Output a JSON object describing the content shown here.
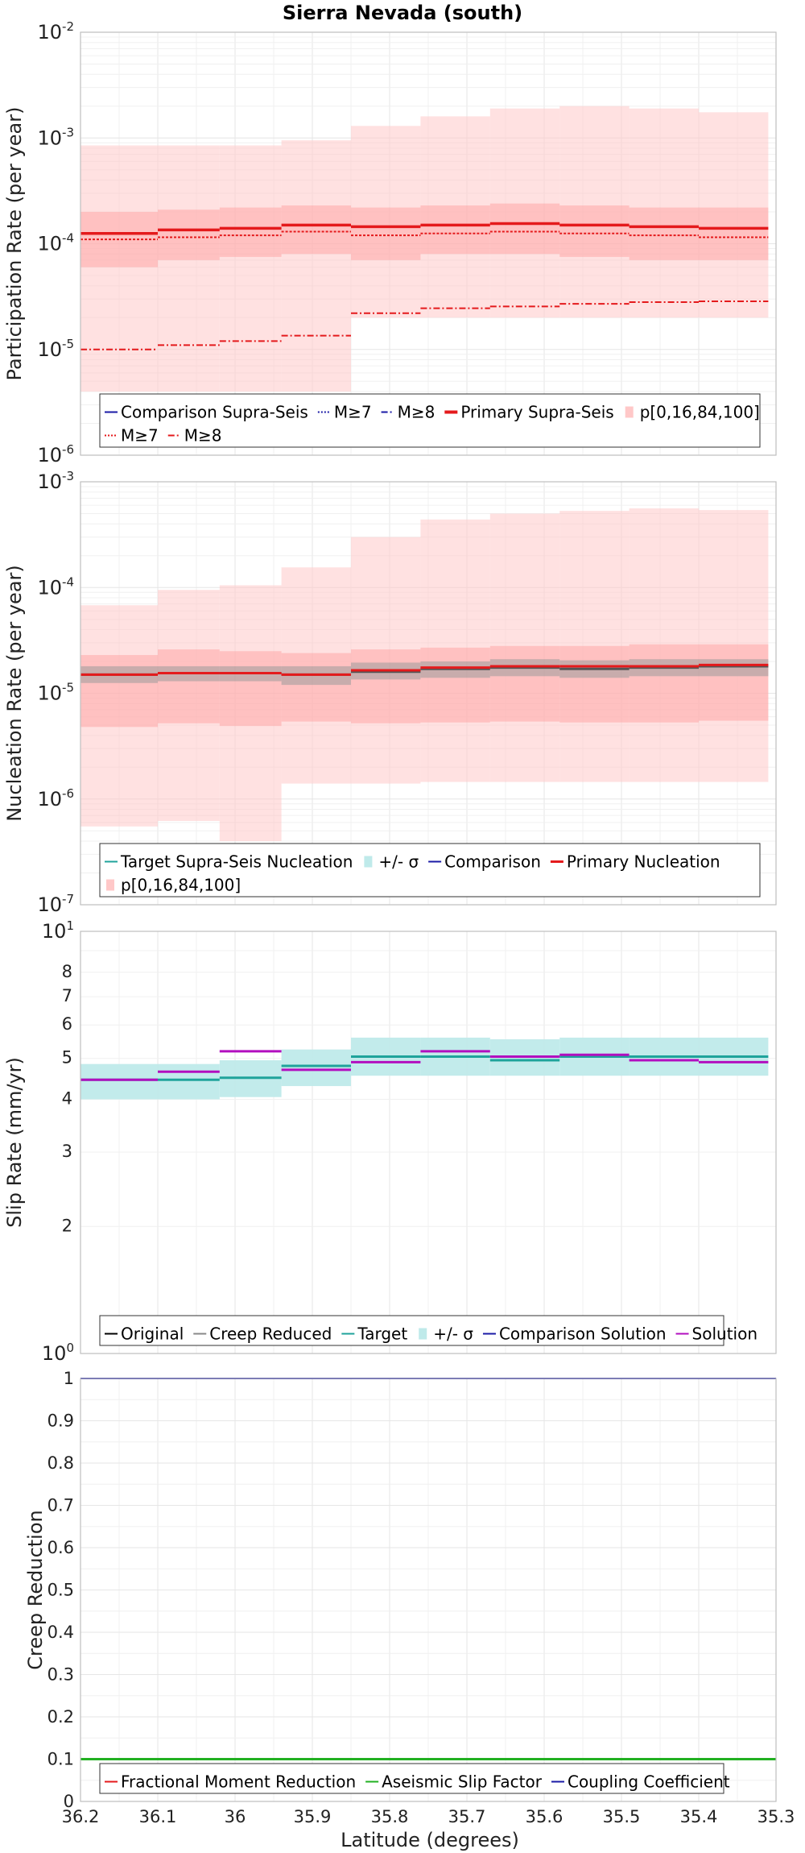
{
  "title": "Sierra Nevada (south)",
  "xlabel": "Latitude (degrees)",
  "x_ticks": [
    "36.2",
    "36.1",
    "36",
    "35.9",
    "35.8",
    "35.7",
    "35.6",
    "35.5",
    "35.4",
    "35.3"
  ],
  "colors": {
    "red": "#e41a1c",
    "pink": "#ffc8c8",
    "teal": "#1fa39b",
    "teal_band": "#bfeaea",
    "magenta": "#b20fbf",
    "blue": "#1a1aa6",
    "green": "#22b022",
    "gray": "#888888"
  },
  "chart_data": [
    {
      "type": "line",
      "id": "participation",
      "ylabel": "Participation Rate (per year)",
      "yscale": "log",
      "ylim": [
        1e-06,
        0.01
      ],
      "y_ticks": [
        {
          "base": "10",
          "exp": "-6"
        },
        {
          "base": "10",
          "exp": "-5"
        },
        {
          "base": "10",
          "exp": "-4"
        },
        {
          "base": "10",
          "exp": "-3"
        },
        {
          "base": "10",
          "exp": "-2"
        }
      ],
      "xlim": [
        36.2,
        35.3
      ],
      "bin_edges": [
        36.2,
        36.1,
        36.02,
        35.94,
        35.85,
        35.76,
        35.67,
        35.58,
        35.49,
        35.4,
        35.31
      ],
      "bands": [
        {
          "kind": "outer",
          "lo": [
            4e-06,
            4e-06,
            4e-06,
            4e-06,
            2e-05,
            2e-05,
            2e-05,
            2e-05,
            2e-05,
            2e-05
          ],
          "hi": [
            0.00085,
            0.00085,
            0.00085,
            0.00095,
            0.0013,
            0.0016,
            0.0019,
            0.002,
            0.0019,
            0.00175
          ]
        },
        {
          "kind": "inner",
          "lo": [
            6e-05,
            7e-05,
            7.5e-05,
            8e-05,
            7e-05,
            8e-05,
            8e-05,
            7.5e-05,
            7e-05,
            7e-05
          ],
          "hi": [
            0.0002,
            0.00021,
            0.00022,
            0.00023,
            0.00022,
            0.00023,
            0.00024,
            0.00023,
            0.00022,
            0.00022
          ]
        }
      ],
      "series": [
        {
          "name": "Primary Supra-Seis",
          "style": "solid",
          "values": [
            0.000125,
            0.000135,
            0.00014,
            0.00015,
            0.000145,
            0.00015,
            0.000155,
            0.00015,
            0.000145,
            0.00014
          ]
        },
        {
          "name": "M≥7",
          "style": "dotted",
          "values": [
            0.00011,
            0.000115,
            0.00012,
            0.00013,
            0.00012,
            0.000125,
            0.00013,
            0.000125,
            0.00012,
            0.000115
          ]
        },
        {
          "name": "M≥8",
          "style": "dashdot",
          "values": [
            1e-05,
            1.1e-05,
            1.2e-05,
            1.35e-05,
            2.2e-05,
            2.45e-05,
            2.55e-05,
            2.7e-05,
            2.8e-05,
            2.85e-05
          ]
        }
      ],
      "legend": [
        {
          "label": "Comparison Supra-Seis",
          "kind": "line",
          "color": "#1a1aa6",
          "dash": ""
        },
        {
          "label": "M≥7",
          "kind": "line",
          "color": "#1a1aa6",
          "dash": "2,2"
        },
        {
          "label": "M≥8",
          "kind": "line",
          "color": "#1a1aa6",
          "dash": "8,3,2,3"
        },
        {
          "label": "Primary Supra-Seis",
          "kind": "line",
          "color": "#e41a1c",
          "dash": "",
          "width": 4
        },
        {
          "label": "p[0,16,84,100]",
          "kind": "box",
          "color": "#ffc8c8"
        },
        {
          "label": "M≥7",
          "kind": "line",
          "color": "#e41a1c",
          "dash": "2,2"
        },
        {
          "label": "M≥8",
          "kind": "line",
          "color": "#e41a1c",
          "dash": "8,3,2,3"
        }
      ]
    },
    {
      "type": "line",
      "id": "nucleation",
      "ylabel": "Nucleation Rate (per year)",
      "yscale": "log",
      "ylim": [
        1e-07,
        0.001
      ],
      "y_ticks": [
        {
          "base": "10",
          "exp": "-7"
        },
        {
          "base": "10",
          "exp": "-6"
        },
        {
          "base": "10",
          "exp": "-5"
        },
        {
          "base": "10",
          "exp": "-4"
        },
        {
          "base": "10",
          "exp": "-3"
        }
      ],
      "xlim": [
        36.2,
        35.3
      ],
      "bin_edges": [
        36.2,
        36.1,
        36.02,
        35.94,
        35.85,
        35.76,
        35.67,
        35.58,
        35.49,
        35.4,
        35.31
      ],
      "bands": [
        {
          "kind": "outer",
          "lo": [
            5.5e-07,
            6.2e-07,
            4e-07,
            1.4e-06,
            1.4e-06,
            1.45e-06,
            1.45e-06,
            1.45e-06,
            1.45e-06,
            1.45e-06
          ],
          "hi": [
            6.8e-05,
            9.5e-05,
            0.000105,
            0.000155,
            0.0003,
            0.00044,
            0.0005,
            0.00053,
            0.00056,
            0.00054
          ]
        },
        {
          "kind": "inner",
          "lo": [
            4.8e-06,
            5.2e-06,
            4.9e-06,
            5.4e-06,
            5.2e-06,
            5.3e-06,
            5.4e-06,
            5.3e-06,
            5.3e-06,
            5.5e-06
          ],
          "hi": [
            2.3e-05,
            2.6e-05,
            2.5e-05,
            2.4e-05,
            2.6e-05,
            2.7e-05,
            2.8e-05,
            2.8e-05,
            2.9e-05,
            2.9e-05
          ]
        },
        {
          "kind": "sigma",
          "lo": [
            1.25e-05,
            1.3e-05,
            1.3e-05,
            1.2e-05,
            1.35e-05,
            1.4e-05,
            1.45e-05,
            1.4e-05,
            1.45e-05,
            1.45e-05
          ],
          "hi": [
            1.8e-05,
            1.8e-05,
            1.8e-05,
            1.8e-05,
            1.95e-05,
            2e-05,
            2.1e-05,
            2.05e-05,
            2.1e-05,
            2.1e-05
          ]
        }
      ],
      "series": [
        {
          "name": "Target Supra-Seis Nucleation",
          "style": "solid",
          "values": [
            1.5e-05,
            1.55e-05,
            1.55e-05,
            1.5e-05,
            1.6e-05,
            1.7e-05,
            1.75e-05,
            1.7e-05,
            1.75e-05,
            1.8e-05
          ]
        },
        {
          "name": "Primary Nucleation",
          "style": "solid",
          "values": [
            1.5e-05,
            1.55e-05,
            1.55e-05,
            1.5e-05,
            1.65e-05,
            1.75e-05,
            1.8e-05,
            1.8e-05,
            1.8e-05,
            1.85e-05
          ]
        }
      ],
      "legend": [
        {
          "label": "Target Supra-Seis Nucleation",
          "kind": "line",
          "color": "#1fa39b",
          "dash": ""
        },
        {
          "label": "+/- σ",
          "kind": "box",
          "color": "#bfeaea"
        },
        {
          "label": "Comparison",
          "kind": "line",
          "color": "#1a1aa6",
          "dash": ""
        },
        {
          "label": "Primary Nucleation",
          "kind": "line",
          "color": "#e41a1c",
          "dash": "",
          "width": 3
        },
        {
          "label": "p[0,16,84,100]",
          "kind": "box",
          "color": "#ffc8c8"
        }
      ]
    },
    {
      "type": "line",
      "id": "sliprate",
      "ylabel": "Slip Rate (mm/yr)",
      "yscale": "log",
      "ylim": [
        1,
        10
      ],
      "y_ticks": [
        {
          "base": "10",
          "exp": "0"
        },
        {
          "base": "10",
          "exp": "1"
        }
      ],
      "y_minor_ticks": [
        "2",
        "3",
        "4",
        "5",
        "6",
        "7",
        "8"
      ],
      "xlim": [
        36.2,
        35.3
      ],
      "bin_edges": [
        36.2,
        36.1,
        36.02,
        35.94,
        35.85,
        35.76,
        35.67,
        35.58,
        35.49,
        35.4,
        35.31
      ],
      "bands": [
        {
          "kind": "sigma",
          "lo": [
            4.0,
            4.0,
            4.05,
            4.3,
            4.55,
            4.55,
            4.55,
            4.55,
            4.55,
            4.55
          ],
          "hi": [
            4.85,
            4.85,
            4.95,
            5.25,
            5.6,
            5.6,
            5.55,
            5.6,
            5.6,
            5.6
          ]
        }
      ],
      "series": [
        {
          "name": "Target",
          "style": "solid",
          "values": [
            4.45,
            4.45,
            4.5,
            4.8,
            5.05,
            5.05,
            4.95,
            5.05,
            5.05,
            5.05
          ]
        },
        {
          "name": "Solution",
          "style": "solid",
          "values": [
            4.45,
            4.65,
            5.2,
            4.7,
            4.9,
            5.2,
            5.05,
            5.1,
            4.95,
            4.9
          ]
        }
      ],
      "legend": [
        {
          "label": "Original",
          "kind": "line",
          "color": "#000000",
          "dash": ""
        },
        {
          "label": "Creep Reduced",
          "kind": "line",
          "color": "#888888",
          "dash": ""
        },
        {
          "label": "Target",
          "kind": "line",
          "color": "#1fa39b",
          "dash": ""
        },
        {
          "label": "+/- σ",
          "kind": "box",
          "color": "#bfeaea"
        },
        {
          "label": "Comparison Solution",
          "kind": "line",
          "color": "#1a1aa6",
          "dash": ""
        },
        {
          "label": "Solution",
          "kind": "line",
          "color": "#b20fbf",
          "dash": ""
        }
      ]
    },
    {
      "type": "line",
      "id": "creep",
      "ylabel": "Creep Reduction",
      "yscale": "linear",
      "ylim": [
        0,
        1
      ],
      "y_ticks": [
        "0",
        "0.1",
        "0.2",
        "0.3",
        "0.4",
        "0.5",
        "0.6",
        "0.7",
        "0.8",
        "0.9",
        "1"
      ],
      "xlim": [
        36.2,
        35.3
      ],
      "series": [
        {
          "name": "Aseismic Slip Factor",
          "value": 0.1
        },
        {
          "name": "Coupling Coefficient",
          "value": 1.0
        }
      ],
      "legend": [
        {
          "label": "Fractional Moment Reduction",
          "kind": "line",
          "color": "#e41a1c",
          "dash": ""
        },
        {
          "label": "Aseismic Slip Factor",
          "kind": "line",
          "color": "#22b022",
          "dash": ""
        },
        {
          "label": "Coupling Coefficient",
          "kind": "line",
          "color": "#1a1aa6",
          "dash": ""
        }
      ]
    }
  ]
}
